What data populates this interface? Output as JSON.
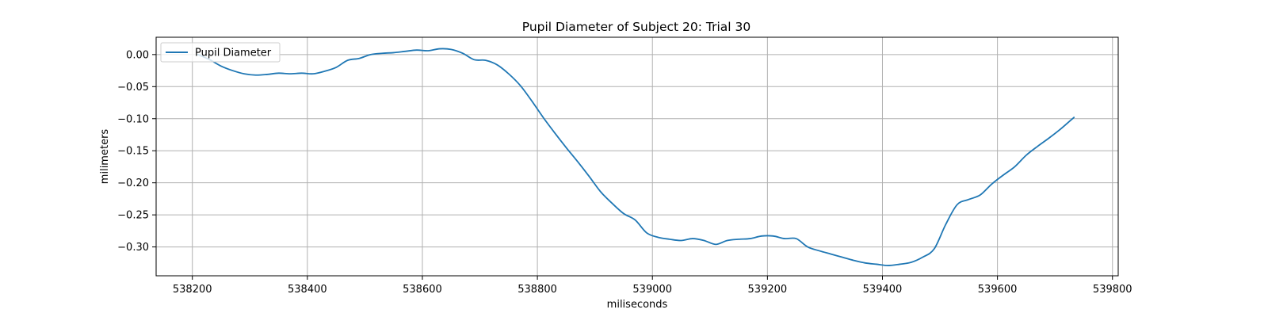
{
  "chart_data": {
    "type": "line",
    "title": "Pupil Diameter of Subject 20: Trial 30",
    "xlabel": "miliseconds",
    "ylabel": "milimeters",
    "xlim": [
      538137,
      539810
    ],
    "ylim": [
      -0.345,
      0.027
    ],
    "x_ticks": [
      538200,
      538400,
      538600,
      538800,
      539000,
      539200,
      539400,
      539600,
      539800
    ],
    "y_ticks": [
      0.0,
      -0.05,
      -0.1,
      -0.15,
      -0.2,
      -0.25,
      -0.3
    ],
    "y_tick_labels": [
      "0.00",
      "−0.05",
      "−0.10",
      "−0.15",
      "−0.20",
      "−0.25",
      "−0.30"
    ],
    "grid": true,
    "legend_position": "upper left",
    "colors": {
      "series": "#1f77b4",
      "grid": "#b0b0b0"
    },
    "series": [
      {
        "name": "Pupil Diameter",
        "x": [
          538210,
          538230,
          538250,
          538270,
          538290,
          538310,
          538330,
          538350,
          538370,
          538390,
          538410,
          538430,
          538450,
          538470,
          538490,
          538510,
          538530,
          538550,
          538570,
          538590,
          538610,
          538630,
          538650,
          538670,
          538690,
          538710,
          538730,
          538750,
          538770,
          538790,
          538810,
          538830,
          538850,
          538870,
          538890,
          538910,
          538930,
          538950,
          538970,
          538990,
          539010,
          539030,
          539050,
          539070,
          539090,
          539110,
          539130,
          539150,
          539170,
          539190,
          539210,
          539230,
          539250,
          539270,
          539290,
          539310,
          539330,
          539350,
          539370,
          539390,
          539410,
          539430,
          539450,
          539470,
          539490,
          539510,
          539530,
          539550,
          539570,
          539590,
          539610,
          539630,
          539650,
          539670,
          539690,
          539710,
          539733
        ],
        "values": [
          0.0,
          -0.008,
          -0.018,
          -0.025,
          -0.03,
          -0.032,
          -0.031,
          -0.029,
          -0.03,
          -0.029,
          -0.03,
          -0.026,
          -0.02,
          -0.009,
          -0.006,
          0.0,
          0.002,
          0.003,
          0.005,
          0.007,
          0.006,
          0.009,
          0.008,
          0.002,
          -0.008,
          -0.009,
          -0.016,
          -0.03,
          -0.048,
          -0.072,
          -0.098,
          -0.122,
          -0.145,
          -0.167,
          -0.19,
          -0.214,
          -0.232,
          -0.248,
          -0.258,
          -0.278,
          -0.285,
          -0.288,
          -0.29,
          -0.287,
          -0.29,
          -0.296,
          -0.29,
          -0.288,
          -0.287,
          -0.283,
          -0.283,
          -0.287,
          -0.287,
          -0.3,
          -0.306,
          -0.311,
          -0.316,
          -0.321,
          -0.325,
          -0.327,
          -0.329,
          -0.327,
          -0.324,
          -0.316,
          -0.303,
          -0.265,
          -0.234,
          -0.226,
          -0.219,
          -0.202,
          -0.188,
          -0.175,
          -0.157,
          -0.143,
          -0.13,
          -0.116,
          -0.098
        ]
      }
    ]
  }
}
